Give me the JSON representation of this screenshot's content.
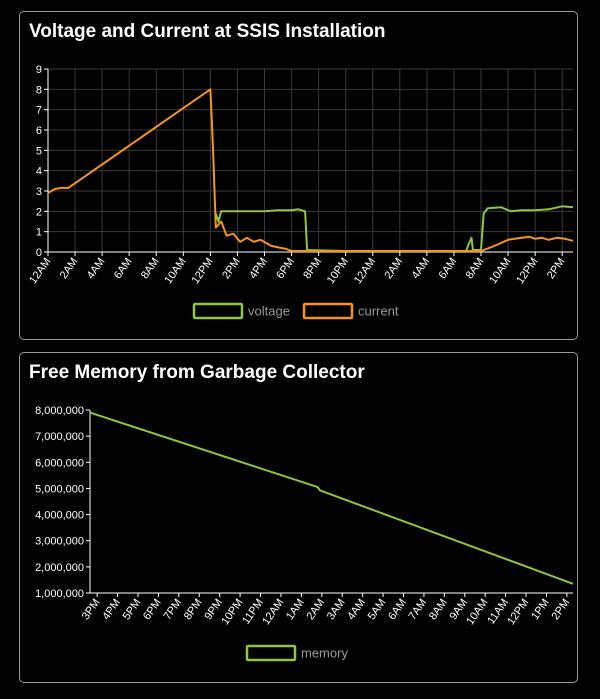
{
  "colors": {
    "voltage": "#8dc63f",
    "current": "#f7941d",
    "memory": "#8dc63f",
    "grid": "#3a3a3a",
    "axis": "#ffffff"
  },
  "chart_data": [
    {
      "type": "line",
      "title": "Voltage and Current at SSIS Installation",
      "xlabel": "",
      "ylabel": "",
      "ylim": [
        0,
        9
      ],
      "xlim": [
        0,
        38.8
      ],
      "x_unit": "hours since 12AM (day 1)",
      "grid": true,
      "legend": "bottom",
      "y_ticks": [
        "0",
        "1",
        "2",
        "3",
        "4",
        "5",
        "6",
        "7",
        "8",
        "9"
      ],
      "x_ticks": [
        "12AM",
        "2AM",
        "4AM",
        "6AM",
        "8AM",
        "10AM",
        "12PM",
        "2PM",
        "4PM",
        "6PM",
        "8PM",
        "10PM",
        "12AM",
        "2AM",
        "4AM",
        "6AM",
        "8AM",
        "10AM",
        "12PM",
        "2PM"
      ],
      "series": [
        {
          "name": "voltage",
          "points": [
            [
              12.4,
              1.9
            ],
            [
              12.6,
              1.5
            ],
            [
              12.8,
              2.0
            ],
            [
              14.0,
              2.0
            ],
            [
              15.0,
              2.0
            ],
            [
              16.0,
              2.0
            ],
            [
              17.0,
              2.05
            ],
            [
              18.0,
              2.05
            ],
            [
              18.5,
              2.1
            ],
            [
              19.0,
              2.0
            ],
            [
              19.15,
              0.1
            ],
            [
              22.0,
              0.05
            ],
            [
              26.0,
              0.05
            ],
            [
              30.0,
              0.05
            ],
            [
              30.9,
              0.05
            ],
            [
              31.1,
              0.4
            ],
            [
              31.3,
              0.7
            ],
            [
              31.4,
              0.1
            ],
            [
              32.0,
              0.1
            ],
            [
              32.2,
              1.9
            ],
            [
              32.5,
              2.15
            ],
            [
              33.5,
              2.2
            ],
            [
              34.2,
              2.0
            ],
            [
              35.0,
              2.05
            ],
            [
              36.0,
              2.05
            ],
            [
              37.0,
              2.1
            ],
            [
              38.0,
              2.25
            ],
            [
              38.8,
              2.2
            ]
          ]
        },
        {
          "name": "current",
          "points": [
            [
              0,
              2.9
            ],
            [
              0.5,
              3.1
            ],
            [
              1.0,
              3.15
            ],
            [
              1.5,
              3.15
            ],
            [
              12.0,
              8.0
            ],
            [
              12.2,
              5.0
            ],
            [
              12.4,
              1.2
            ],
            [
              12.8,
              1.5
            ],
            [
              13.2,
              0.8
            ],
            [
              13.7,
              0.9
            ],
            [
              14.2,
              0.5
            ],
            [
              14.7,
              0.7
            ],
            [
              15.2,
              0.5
            ],
            [
              15.7,
              0.6
            ],
            [
              16.5,
              0.3
            ],
            [
              17.2,
              0.2
            ],
            [
              17.6,
              0.15
            ],
            [
              18.0,
              0.05
            ],
            [
              19.0,
              0.05
            ],
            [
              22.0,
              0.05
            ],
            [
              26.0,
              0.05
            ],
            [
              30.0,
              0.05
            ],
            [
              32.0,
              0.05
            ],
            [
              33.0,
              0.3
            ],
            [
              34.0,
              0.6
            ],
            [
              35.0,
              0.7
            ],
            [
              35.6,
              0.75
            ],
            [
              36.0,
              0.65
            ],
            [
              36.5,
              0.7
            ],
            [
              37.0,
              0.6
            ],
            [
              37.6,
              0.7
            ],
            [
              38.2,
              0.65
            ],
            [
              38.8,
              0.55
            ]
          ]
        }
      ]
    },
    {
      "type": "line",
      "title": "Free Memory from Garbage Collector",
      "xlabel": "",
      "ylabel": "",
      "ylim": [
        1000000,
        8000000
      ],
      "xlim": [
        -0.35,
        23.3
      ],
      "x_unit": "hours since 3PM",
      "grid": false,
      "legend": "bottom",
      "y_ticks": [
        "1,000,000",
        "2,000,000",
        "3,000,000",
        "4,000,000",
        "5,000,000",
        "6,000,000",
        "7,000,000",
        "8,000,000"
      ],
      "x_ticks": [
        "3PM",
        "4PM",
        "5PM",
        "6PM",
        "7PM",
        "8PM",
        "9PM",
        "10PM",
        "11PM",
        "12AM",
        "1AM",
        "2AM",
        "3AM",
        "4AM",
        "5AM",
        "6AM",
        "7AM",
        "8AM",
        "9AM",
        "10AM",
        "11AM",
        "12PM",
        "1PM",
        "2PM"
      ],
      "series": [
        {
          "name": "memory",
          "points": [
            [
              -0.35,
              7900000
            ],
            [
              10.8,
              5050000
            ],
            [
              10.9,
              4930000
            ],
            [
              23.3,
              1350000
            ]
          ]
        }
      ]
    }
  ]
}
